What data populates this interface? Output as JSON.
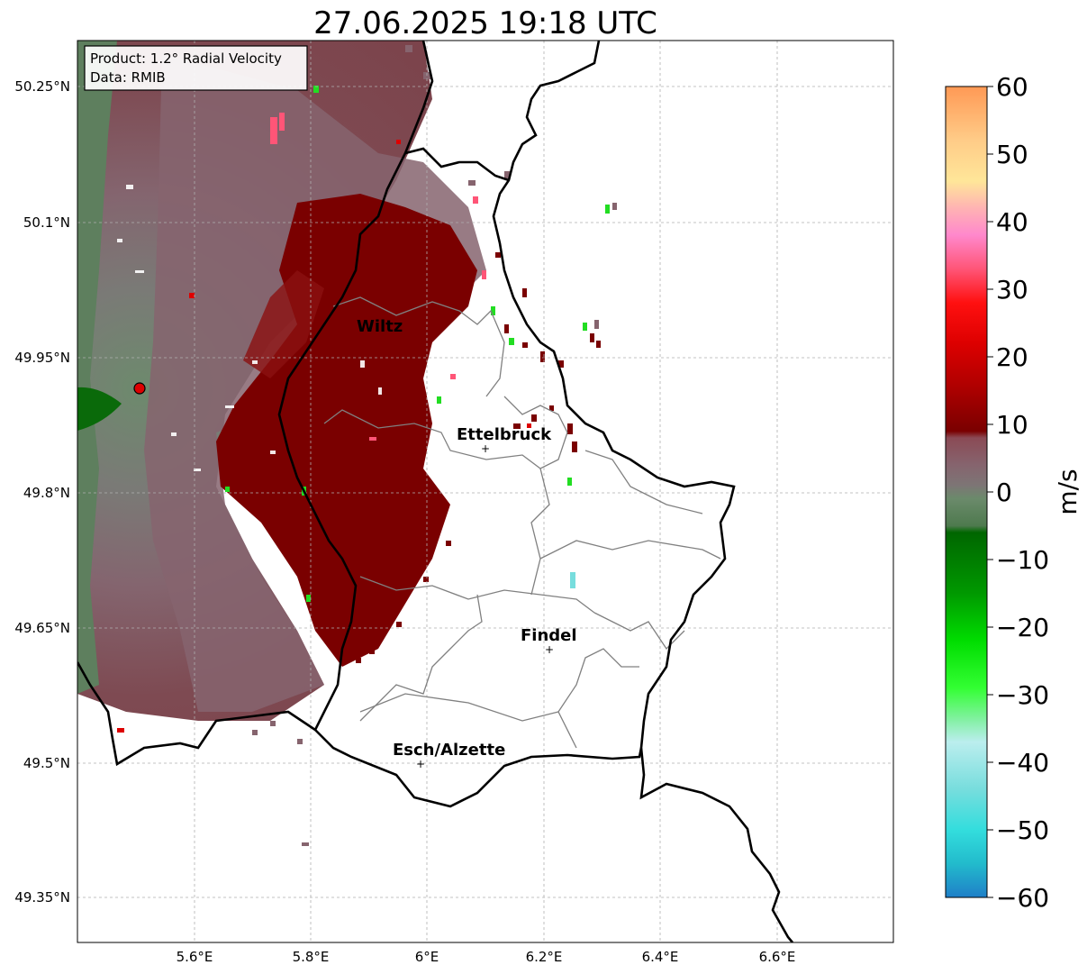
{
  "title": "27.06.2025 19:18 UTC",
  "info_box": {
    "product": "Product: 1.2° Radial Velocity",
    "data": "Data: RMIB"
  },
  "axes": {
    "lon_ticks": [
      "5.6°E",
      "5.8°E",
      "6°E",
      "6.2°E",
      "6.4°E",
      "6.6°E"
    ],
    "lat_ticks": [
      "50.25°N",
      "50.1°N",
      "49.95°N",
      "49.8°N",
      "49.65°N",
      "49.5°N",
      "49.35°N"
    ]
  },
  "cities": [
    {
      "name": "Wiltz"
    },
    {
      "name": "Ettelbruck"
    },
    {
      "name": "Findel"
    },
    {
      "name": "Esch/Alzette"
    }
  ],
  "colorbar": {
    "label": "m/s",
    "ticks": [
      "60",
      "50",
      "40",
      "30",
      "20",
      "10",
      "0",
      "−10",
      "−20",
      "−30",
      "−40",
      "−50",
      "−60"
    ],
    "range": [
      -60,
      60
    ],
    "stops": [
      {
        "v": 60,
        "color": "#ff9955"
      },
      {
        "v": 52,
        "color": "#ffcc88"
      },
      {
        "v": 46,
        "color": "#ffe699"
      },
      {
        "v": 42,
        "color": "#ffb3b3"
      },
      {
        "v": 38,
        "color": "#ff88cc"
      },
      {
        "v": 33,
        "color": "#ff5577"
      },
      {
        "v": 28,
        "color": "#ff1010"
      },
      {
        "v": 22,
        "color": "#dd0000"
      },
      {
        "v": 15,
        "color": "#aa0000"
      },
      {
        "v": 9,
        "color": "#7a0000"
      },
      {
        "v": 8,
        "color": "#8b4a55"
      },
      {
        "v": 4,
        "color": "#86646e"
      },
      {
        "v": 1,
        "color": "#7d7575"
      },
      {
        "v": -1,
        "color": "#6b8a6b"
      },
      {
        "v": -5,
        "color": "#4e7a4e"
      },
      {
        "v": -6,
        "color": "#006600"
      },
      {
        "v": -15,
        "color": "#009900"
      },
      {
        "v": -22,
        "color": "#00dd00"
      },
      {
        "v": -29,
        "color": "#33ff33"
      },
      {
        "v": -34,
        "color": "#88f0aa"
      },
      {
        "v": -37,
        "color": "#bbeeee"
      },
      {
        "v": -44,
        "color": "#77dddd"
      },
      {
        "v": -50,
        "color": "#33dddd"
      },
      {
        "v": -55,
        "color": "#22bbcc"
      },
      {
        "v": -60,
        "color": "#1f7fc8"
      }
    ]
  }
}
